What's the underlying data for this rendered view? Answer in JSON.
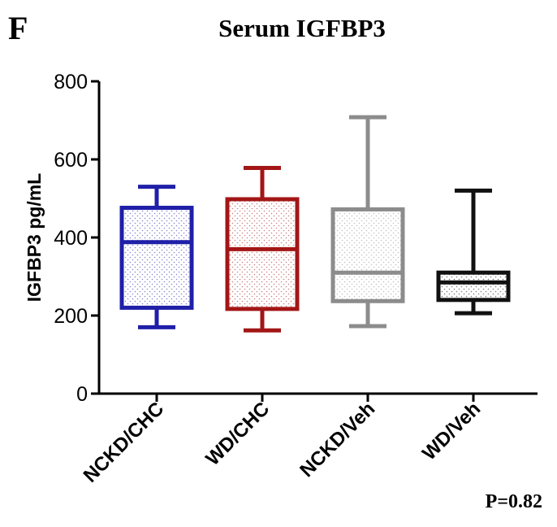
{
  "panel_label": "F",
  "p_value_text": "P=0.82",
  "colors": {
    "series": [
      "#1f1fa8",
      "#a31616",
      "#8c8c8c",
      "#111111"
    ],
    "axis": "#000000"
  },
  "chart_data": {
    "type": "box",
    "title": "Serum IGFBP3",
    "xlabel": "",
    "ylabel": "IGFBP3 pg/mL",
    "ylim": [
      0,
      800
    ],
    "yticks": [
      0,
      200,
      400,
      600,
      800
    ],
    "categories": [
      "NCKD/CHC",
      "WD/CHC",
      "NCKD/Veh",
      "WD/Veh"
    ],
    "boxes": [
      {
        "category": "NCKD/CHC",
        "min": 170,
        "q1": 220,
        "median": 388,
        "q3": 476,
        "max": 530
      },
      {
        "category": "WD/CHC",
        "min": 162,
        "q1": 217,
        "median": 370,
        "q3": 498,
        "max": 578
      },
      {
        "category": "NCKD/Veh",
        "min": 173,
        "q1": 237,
        "median": 310,
        "q3": 472,
        "max": 708
      },
      {
        "category": "WD/Veh",
        "min": 206,
        "q1": 240,
        "median": 285,
        "q3": 310,
        "max": 520
      }
    ],
    "grid": false,
    "legend": "none",
    "annotation": "P=0.82"
  }
}
